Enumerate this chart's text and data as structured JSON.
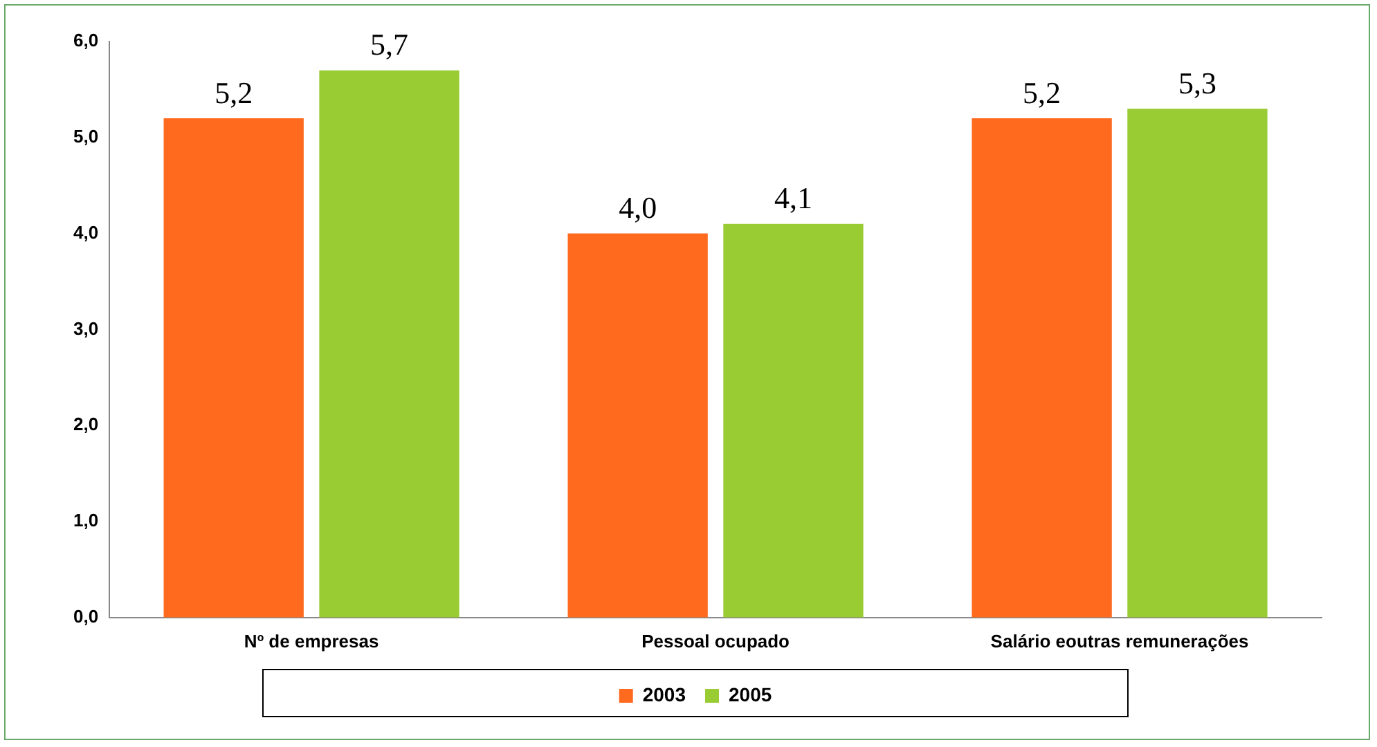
{
  "chart_data": {
    "type": "bar",
    "categories": [
      "Nº de empresas",
      "Pessoal ocupado",
      "Salário eoutras remunerações"
    ],
    "series": [
      {
        "name": "2003",
        "color": "#ff6a1f",
        "values": [
          5.2,
          4.0,
          5.2
        ],
        "value_labels": [
          "5,2",
          "4,0",
          "5,2"
        ]
      },
      {
        "name": "2005",
        "color": "#99cc33",
        "values": [
          5.7,
          4.1,
          5.3
        ],
        "value_labels": [
          "5,7",
          "4,1",
          "5,3"
        ]
      }
    ],
    "ylim": [
      0,
      6
    ],
    "yticks": [
      {
        "value": 0,
        "label": "0,0"
      },
      {
        "value": 1,
        "label": "1,0"
      },
      {
        "value": 2,
        "label": "2,0"
      },
      {
        "value": 3,
        "label": "3,0"
      },
      {
        "value": 4,
        "label": "4,0"
      },
      {
        "value": 5,
        "label": "5,0"
      },
      {
        "value": 6,
        "label": "6,0"
      }
    ],
    "grid": false,
    "legend": "bottom"
  }
}
